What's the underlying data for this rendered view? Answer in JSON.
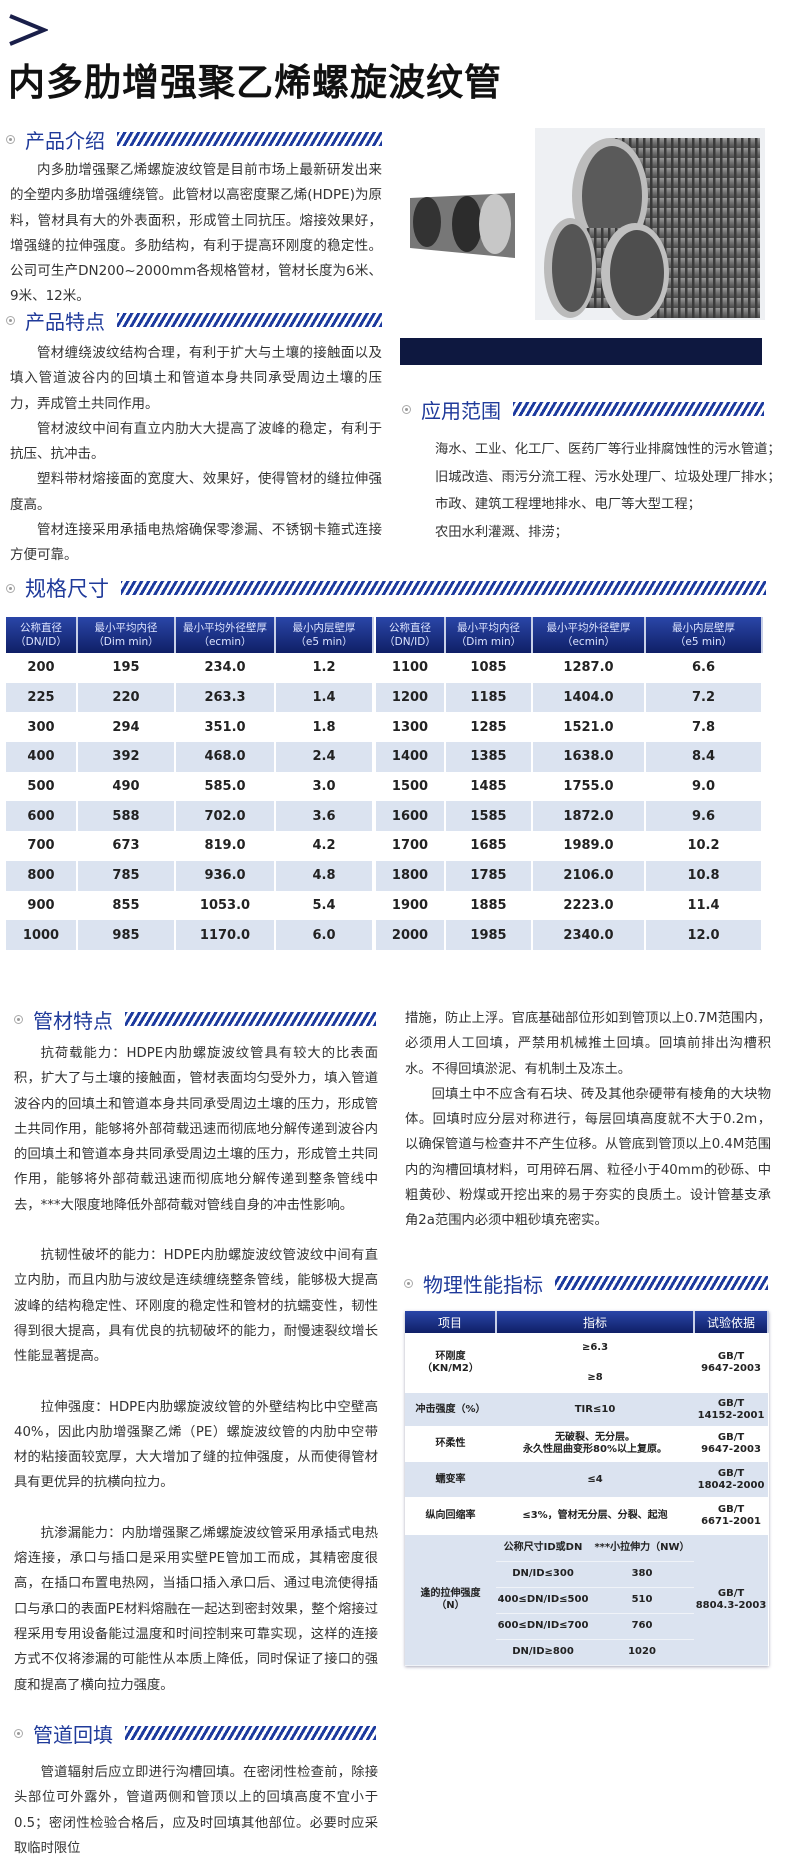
{
  "page": {
    "title": "内多肋增强聚乙烯螺旋波纹管"
  },
  "colors": {
    "accent": "#1f3a9a",
    "header_navy": "#0f1f66",
    "row_alt": "#dbe3f0"
  },
  "sections": {
    "intro": {
      "heading": "产品介绍",
      "text": "内多肋增强聚乙烯螺旋波纹管是目前市场上最新研发出来的全塑内多肋增强缠绕管。此管材以高密度聚乙烯(HDPE)为原料，管材具有大的外表面积，形成管土同抗压。熔接效果好，增强缝的拉伸强度。多肋结构，有利于提高环刚度的稳定性。公司可生产DN200~2000mm各规格管材，管材长度为6米、9米、12米。"
    },
    "features": {
      "heading": "产品特点",
      "paragraphs": [
        "管材缠绕波纹结构合理，有利于扩大与土壤的接触面以及填入管道波谷内的回填土和管道本身共同承受周边土壤的压力，弄成管土共同作用。",
        "管材波纹中间有直立内肋大大提高了波峰的稳定，有利于抗压、抗冲击。",
        "塑料带材熔接面的宽度大、效果好，使得管材的缝拉伸强度高。",
        "管材连接采用承插电热熔确保零渗漏、不锈钢卡箍式连接方便可靠。"
      ]
    },
    "applications": {
      "heading": "应用范围",
      "items": [
        "海水、工业、化工厂、医药厂等行业排腐蚀性的污水管道；",
        "旧城改造、雨污分流工程、污水处理厂、垃圾处理厂排水；",
        "市政、建筑工程埋地排水、电厂等大型工程；",
        "农田水利灌溉、排涝；"
      ]
    },
    "specs": {
      "heading": "规格尺寸",
      "columns": [
        [
          "公称直径",
          "（DN/ID）"
        ],
        [
          "最小平均内径",
          "（Dim min）"
        ],
        [
          "最小平均外径壁厚",
          "（ecmin）"
        ],
        [
          "最小内层壁厚",
          "（e5 min）"
        ]
      ],
      "left_rows": [
        [
          "200",
          "195",
          "234.0",
          "1.2"
        ],
        [
          "225",
          "220",
          "263.3",
          "1.4"
        ],
        [
          "300",
          "294",
          "351.0",
          "1.8"
        ],
        [
          "400",
          "392",
          "468.0",
          "2.4"
        ],
        [
          "500",
          "490",
          "585.0",
          "3.0"
        ],
        [
          "600",
          "588",
          "702.0",
          "3.6"
        ],
        [
          "700",
          "673",
          "819.0",
          "4.2"
        ],
        [
          "800",
          "785",
          "936.0",
          "4.8"
        ],
        [
          "900",
          "855",
          "1053.0",
          "5.4"
        ],
        [
          "1000",
          "985",
          "1170.0",
          "6.0"
        ]
      ],
      "right_rows": [
        [
          "1100",
          "1085",
          "1287.0",
          "6.6"
        ],
        [
          "1200",
          "1185",
          "1404.0",
          "7.2"
        ],
        [
          "1300",
          "1285",
          "1521.0",
          "7.8"
        ],
        [
          "1400",
          "1385",
          "1638.0",
          "8.4"
        ],
        [
          "1500",
          "1485",
          "1755.0",
          "9.0"
        ],
        [
          "1600",
          "1585",
          "1872.0",
          "9.6"
        ],
        [
          "1700",
          "1685",
          "1989.0",
          "10.2"
        ],
        [
          "1800",
          "1785",
          "2106.0",
          "10.8"
        ],
        [
          "1900",
          "1885",
          "2223.0",
          "11.4"
        ],
        [
          "2000",
          "1985",
          "2340.0",
          "12.0"
        ]
      ]
    },
    "pipe_features": {
      "heading": "管材特点",
      "paragraphs": [
        "抗荷载能力：HDPE内肋螺旋波纹管具有较大的比表面积，扩大了与土壤的接触面，管材表面均匀受外力，填入管道波谷内的回填土和管道本身共同承受周边土壤的压力，形成管土共同作用，能够将外部荷载迅速而彻底地分解传递到波谷内的回填土和管道本身共同承受周边土壤的压力，形成管土共同作用，能够将外部荷载迅速而彻底地分解传递到整条管线中去，***大限度地降低外部荷载对管线自身的冲击性影响。",
        "抗韧性破坏的能力：HDPE内肋螺旋波纹管波纹中间有直立内肋，而且内肋与波纹是连续缠绕整条管线，能够极大提高波峰的结构稳定性、环刚度的稳定性和管材的抗蠕变性，韧性得到很大提高，具有优良的抗韧破坏的能力，耐慢速裂纹增长性能显著提高。",
        "拉伸强度：HDPE内肋螺旋波纹管的外壁结构比中空壁高40%，因此内肋增强聚乙烯（PE）螺旋波纹管的内肋中空带材的粘接面较宽厚，大大增加了缝的拉伸强度，从而使得管材具有更优异的抗横向拉力。",
        "抗渗漏能力：内肋增强聚乙烯螺旋波纹管采用承插式电热熔连接，承口与插口是采用实壁PE管加工而成，其精密度很高，在插口布置电热网，当插口插入承口后、通过电流使得插口与承口的表面PE材料熔融在一起达到密封效果，整个熔接过程采用专用设备能过温度和时间控制来可靠实现，这样的连接方式不仅将渗漏的可能性从本质上降低，同时保证了接口的强度和提高了横向拉力强度。"
      ]
    },
    "backfill": {
      "heading": "管道回填",
      "text": "管道辐射后应立即进行沟槽回填。在密闭性检查前，除接头部位可外露外，管道两侧和管顶以上的回填高度不宜小于0.5；密闭性检验合格后，应及时回填其他部位。必要时应采取临时限位",
      "continuation": "措施，防止上浮。官底基础部位形如到管顶以上0.7M范围内，必须用人工回填，严禁用机械推土回填。回填前排出沟槽积水。不得回填淤泥、有机制土及冻土。",
      "paragraph2": "回填土中不应含有石块、砖及其他杂硬带有棱角的大块物体。回填时应分层对称进行，每层回填高度就不大于0.2m，以确保管道与检查井不产生位移。从管底到管顶以上0.4M范围内的沟槽回填材料，可用碎石屑、粒径小于40mm的砂砾、中粗黄砂、粉煤或开挖出来的易于夯实的良质土。设计管基支承角2a范围内必须中粗砂填充密实。"
    },
    "physical": {
      "heading": "物理性能指标",
      "headers": [
        "项目",
        "指标",
        "试验依据"
      ],
      "rows": [
        {
          "item": "环刚度",
          "item2": "（KN/M2）",
          "values": [
            "≥6.3",
            "≥8"
          ],
          "basis": [
            "GB/T",
            "9647-2003"
          ]
        },
        {
          "item": "冲击强度（%）",
          "values": [
            "TIR≤10"
          ],
          "basis": [
            "GB/T",
            "14152-2001"
          ]
        },
        {
          "item": "环柔性",
          "values": [
            "无破裂、无分层。",
            "永久性屈曲变形80%以上复原。"
          ],
          "basis": [
            "GB/T",
            "9647-2003"
          ]
        },
        {
          "item": "蠕变率",
          "values": [
            "≤4"
          ],
          "basis": [
            "GB/T",
            "18042-2000"
          ]
        },
        {
          "item": "纵向回缩率",
          "values": [
            "≤3%，管材无分层、分裂、起泡"
          ],
          "basis": [
            "GB/T",
            "6671-2001"
          ]
        }
      ],
      "tensile": {
        "item": "逢的拉伸强度",
        "item2": "（N）",
        "sub_headers": [
          "公称尺寸ID或DN",
          "***小拉伸力（NW）"
        ],
        "sub_rows": [
          [
            "DN/ID≤300",
            "380"
          ],
          [
            "400≤DN/ID≤500",
            "510"
          ],
          [
            "600≤DN/ID≤700",
            "760"
          ],
          [
            "DN/ID≥800",
            "1020"
          ]
        ],
        "basis": [
          "GB/T",
          "8804.3-2003"
        ]
      }
    }
  }
}
